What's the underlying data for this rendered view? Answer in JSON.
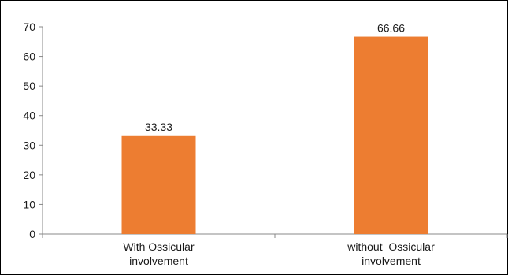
{
  "chart_data": {
    "type": "bar",
    "title": "",
    "xlabel": "",
    "ylabel": "",
    "categories": [
      [
        "With Ossicular",
        "involvement"
      ],
      [
        "without  Ossicular",
        "involvement"
      ]
    ],
    "values": [
      33.33,
      66.66
    ],
    "data_labels": [
      "33.33",
      "66.66"
    ],
    "ylim": [
      0,
      70
    ],
    "yticks": [
      0,
      10,
      20,
      30,
      40,
      50,
      60,
      70
    ],
    "ytick_labels": [
      "0",
      "10",
      "20",
      "30",
      "40",
      "50",
      "60",
      "70"
    ],
    "grid": false,
    "legend": "none",
    "bar_color": "#ED7D31"
  }
}
